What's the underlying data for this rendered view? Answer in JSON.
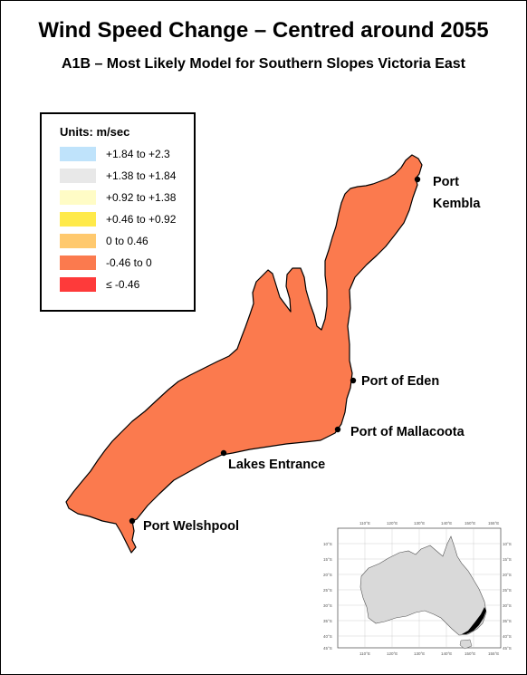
{
  "title": "Wind Speed Change – Centred around 2055",
  "subtitle": "A1B – Most Likely Model for Southern Slopes Victoria East",
  "legend": {
    "title": "Units: m/sec",
    "items": [
      {
        "label": "+1.84 to +2.3",
        "color": "#bfe3fb"
      },
      {
        "label": "+1.38 to +1.84",
        "color": "#e8e8e8"
      },
      {
        "label": "+0.92 to +1.38",
        "color": "#fffcc6"
      },
      {
        "label": "+0.46 to +0.92",
        "color": "#ffea4a"
      },
      {
        "label": "0 to 0.46",
        "color": "#ffc96e"
      },
      {
        "label": "-0.46 to 0",
        "color": "#fb7a4e"
      },
      {
        "label": "≤ -0.46",
        "color": "#fe3a3a"
      }
    ]
  },
  "region_color": "#fb7a4e",
  "places": {
    "port_kembla_line1": "Port",
    "port_kembla_line2": "Kembla",
    "port_of_eden": "Port of Eden",
    "port_of_mallacoota": "Port of Mallacoota",
    "lakes_entrance": "Lakes Entrance",
    "port_welshpool": "Port Welshpool"
  },
  "inset": {
    "lon_ticks": [
      "110°E",
      "120°E",
      "130°E",
      "140°E",
      "150°E",
      "155°E"
    ],
    "lat_ticks": [
      "10°S",
      "15°S",
      "20°S",
      "25°S",
      "30°S",
      "35°S",
      "40°S",
      "45°S"
    ],
    "land_color": "#d9d9d9",
    "highlight_color": "#000000"
  }
}
